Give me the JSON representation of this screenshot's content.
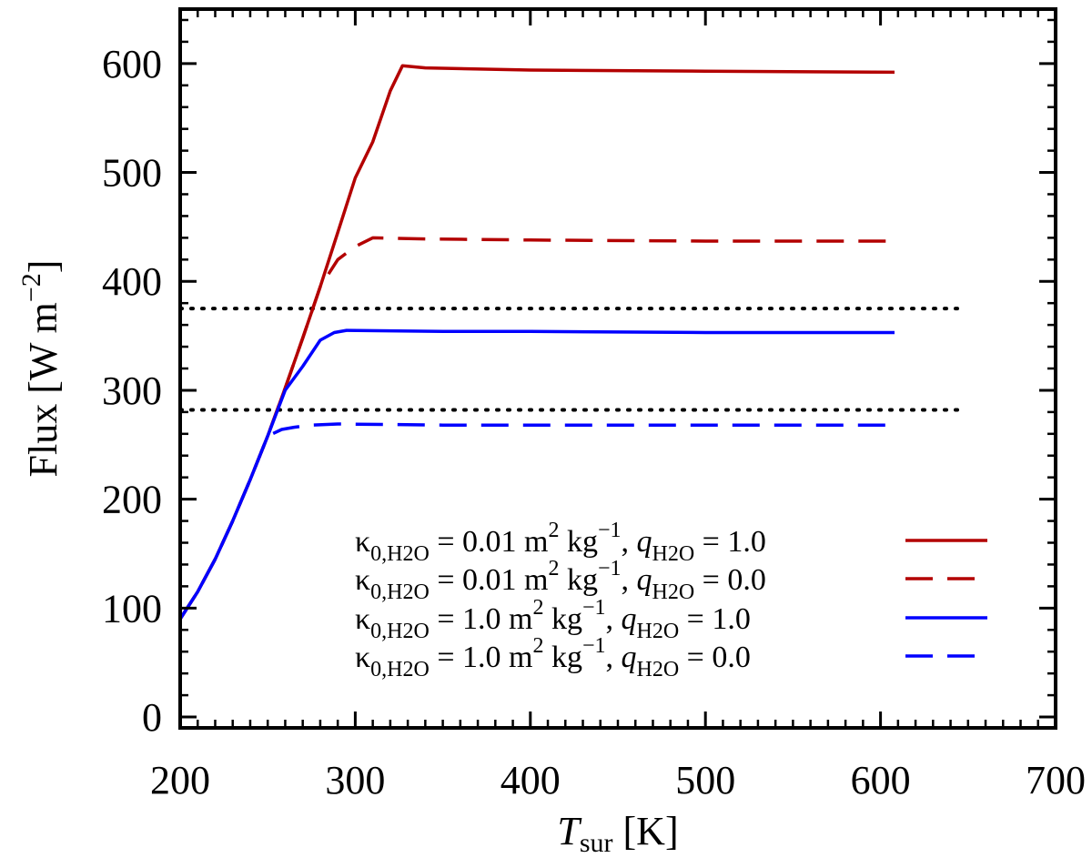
{
  "chart_data": {
    "type": "line",
    "xlabel": {
      "main": "T",
      "sub": "sur",
      "unit": " [K]"
    },
    "ylabel": "Flux [W m",
    "ylabel_exp": "−2",
    "ylabel_close": "]",
    "xlim": [
      200,
      700
    ],
    "ylim": [
      -10,
      650
    ],
    "xticks": [
      200,
      300,
      400,
      500,
      600,
      700
    ],
    "yticks": [
      0,
      100,
      200,
      300,
      400,
      500,
      600
    ],
    "xtick_labels": [
      "200",
      "300",
      "400",
      "500",
      "600",
      "700"
    ],
    "ytick_labels": [
      "0",
      "100",
      "200",
      "300",
      "400",
      "500",
      "600"
    ],
    "reference_lines": [
      {
        "y": 375,
        "style": "dotted",
        "color": "#000000"
      },
      {
        "y": 282,
        "style": "dotted",
        "color": "#000000"
      }
    ],
    "series": [
      {
        "name": "κ0,H2O = 0.01 m2 kg−1, qH2O = 1.0",
        "color": "#b30000",
        "dash": "solid",
        "x": [
          200,
          210,
          220,
          230,
          240,
          250,
          260,
          270,
          280,
          290,
          300,
          310,
          320,
          327,
          340,
          400,
          500,
          608
        ],
        "y": [
          90,
          115,
          145,
          180,
          218,
          258,
          302,
          348,
          395,
          445,
          495,
          528,
          575,
          598,
          596,
          594,
          593,
          592
        ]
      },
      {
        "name": "κ0,H2O = 0.01 m2 kg−1, qH2O = 0.0",
        "color": "#b30000",
        "dash": "dashed",
        "x": [
          200,
          210,
          220,
          230,
          240,
          250,
          260,
          270,
          280,
          290,
          300,
          310,
          340,
          400,
          500,
          608
        ],
        "y": [
          90,
          115,
          145,
          180,
          218,
          258,
          302,
          348,
          395,
          420,
          432,
          440,
          439,
          438,
          437,
          437
        ]
      },
      {
        "name": "κ0,H2O = 1.0 m2 kg−1, qH2O = 1.0",
        "color": "#0000ff",
        "dash": "solid",
        "x": [
          200,
          210,
          220,
          230,
          240,
          250,
          260,
          270,
          280,
          288,
          295,
          350,
          400,
          500,
          608
        ],
        "y": [
          90,
          115,
          145,
          180,
          218,
          258,
          300,
          322,
          346,
          353,
          355,
          354,
          354,
          353,
          353
        ]
      },
      {
        "name": "κ0,H2O = 1.0 m2 kg−1, qH2O = 0.0",
        "color": "#0000ff",
        "dash": "dashed",
        "x": [
          200,
          210,
          220,
          230,
          240,
          250,
          258,
          265,
          275,
          290,
          350,
          450,
          608
        ],
        "y": [
          90,
          115,
          145,
          180,
          218,
          258,
          264,
          266,
          268,
          269,
          268,
          268,
          268
        ]
      }
    ],
    "legend": {
      "position": "bottom-right",
      "entries": [
        {
          "kappa": "κ",
          "kappa_sub": "0,H2O",
          "eq": " = 0.01  m",
          "m_exp": "2",
          "kg": " kg",
          "kg_exp": "−1",
          "comma": ", ",
          "q": "q",
          "q_sub": "H2O",
          "qval": " = 1.0",
          "color": "#b30000",
          "dash": "solid"
        },
        {
          "kappa": "κ",
          "kappa_sub": "0,H2O",
          "eq": " = 0.01  m",
          "m_exp": "2",
          "kg": " kg",
          "kg_exp": "−1",
          "comma": ", ",
          "q": "q",
          "q_sub": "H2O",
          "qval": " = 0.0",
          "color": "#b30000",
          "dash": "dashed"
        },
        {
          "kappa": "κ",
          "kappa_sub": "0,H2O",
          "eq": " = 1.0    m",
          "m_exp": "2",
          "kg": " kg",
          "kg_exp": "−1",
          "comma": ", ",
          "q": "q",
          "q_sub": "H2O",
          "qval": " = 1.0",
          "color": "#0000ff",
          "dash": "solid"
        },
        {
          "kappa": "κ",
          "kappa_sub": "0,H2O",
          "eq": " = 1.0    m",
          "m_exp": "2",
          "kg": " kg",
          "kg_exp": "−1",
          "comma": ", ",
          "q": "q",
          "q_sub": "H2O",
          "qval": " = 0.0",
          "color": "#0000ff",
          "dash": "dashed"
        }
      ]
    }
  }
}
